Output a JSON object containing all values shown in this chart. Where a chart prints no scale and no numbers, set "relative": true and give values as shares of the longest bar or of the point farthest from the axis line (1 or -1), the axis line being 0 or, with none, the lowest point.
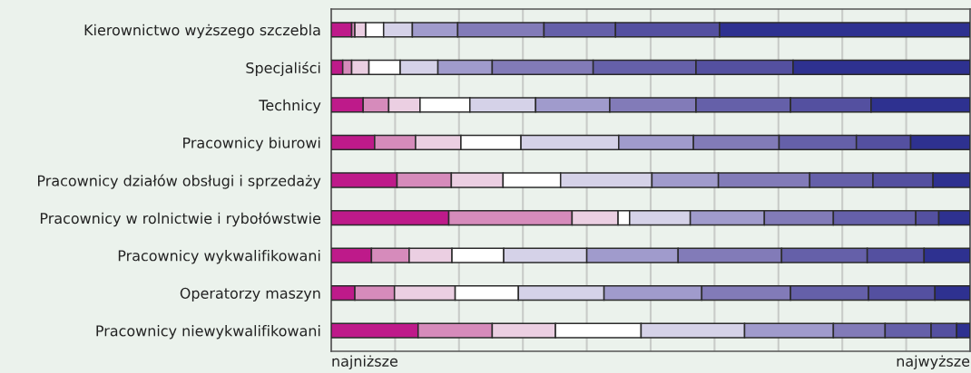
{
  "chart_data": {
    "type": "bar",
    "orientation": "horizontal",
    "stacked": true,
    "relative": true,
    "grid": "x",
    "categories": [
      "Kierownictwo wyższego szczebla",
      "Specjaliści",
      "Technicy",
      "Pracownicy biurowi",
      "Pracownicy działów obsługi i sprzedaży",
      "Pracownicy w rolnictwie i rybołówstwie",
      "Pracownicy wykwalifikowani",
      "Operatorzy maszyn",
      "Pracownicy niewykwalifikowani"
    ],
    "series": [
      {
        "color": "#be1a8a",
        "values": [
          0.032,
          0.018,
          0.05,
          0.068,
          0.103,
          0.184,
          0.063,
          0.037,
          0.136
        ]
      },
      {
        "color": "#d68bbb",
        "values": [
          0.005,
          0.014,
          0.04,
          0.064,
          0.085,
          0.193,
          0.059,
          0.062,
          0.116
        ]
      },
      {
        "color": "#ebcfe2",
        "values": [
          0.017,
          0.027,
          0.049,
          0.071,
          0.081,
          0.072,
          0.067,
          0.095,
          0.099
        ]
      },
      {
        "color": "#ffffff",
        "values": [
          0.028,
          0.049,
          0.078,
          0.094,
          0.09,
          0.018,
          0.081,
          0.099,
          0.134
        ]
      },
      {
        "color": "#d5d2e8",
        "values": [
          0.045,
          0.059,
          0.103,
          0.153,
          0.143,
          0.095,
          0.13,
          0.134,
          0.162
        ]
      },
      {
        "color": "#a09bcc",
        "values": [
          0.071,
          0.085,
          0.116,
          0.117,
          0.104,
          0.116,
          0.143,
          0.153,
          0.139
        ]
      },
      {
        "color": "#827bb8",
        "values": [
          0.135,
          0.158,
          0.135,
          0.134,
          0.143,
          0.108,
          0.162,
          0.139,
          0.081
        ]
      },
      {
        "color": "#6560a9",
        "values": [
          0.112,
          0.161,
          0.148,
          0.121,
          0.099,
          0.129,
          0.134,
          0.122,
          0.072
        ]
      },
      {
        "color": "#5450a0",
        "values": [
          0.163,
          0.152,
          0.126,
          0.085,
          0.094,
          0.036,
          0.089,
          0.104,
          0.04
        ]
      },
      {
        "color": "#2e3190",
        "values": [
          0.392,
          0.277,
          0.155,
          0.093,
          0.058,
          0.049,
          0.072,
          0.055,
          0.021
        ]
      }
    ],
    "annotations": [
      "najniższe",
      "najwyższe"
    ]
  }
}
